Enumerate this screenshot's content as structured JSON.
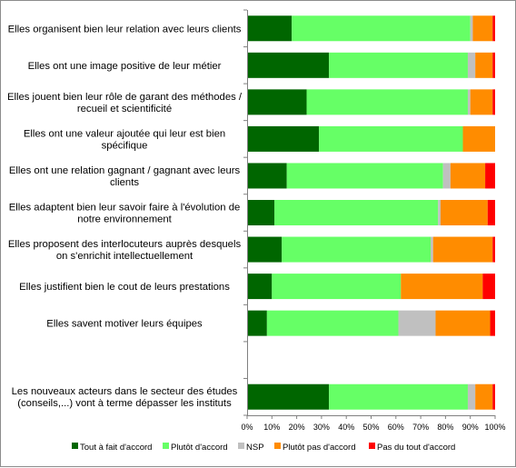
{
  "chart_data": {
    "type": "bar",
    "orientation": "horizontal",
    "stacked": true,
    "categories": [
      [
        "Elles organisent bien leur relation avec leurs clients"
      ],
      [
        "Elles ont une image positive de leur métier"
      ],
      [
        "Elles jouent bien leur rôle de garant des méthodes /",
        "recueil et scientificité"
      ],
      [
        "Elles ont une valeur ajoutée qui leur est bien",
        "spécifique"
      ],
      [
        "Elles ont une relation gagnant / gagnant avec leurs",
        "clients"
      ],
      [
        "Elles adaptent bien leur savoir faire à l'évolution de",
        "notre environnement"
      ],
      [
        "Elles proposent des interlocuteurs auprès desquels",
        "on s'enrichit intellectuellement"
      ],
      [
        "Elles justifient bien le cout de leurs prestations"
      ],
      [
        "Elles savent motiver leurs équipes"
      ],
      [],
      [
        "Les nouveaux acteurs dans le secteur des études",
        "(conseils,...) vont à terme dépasser les instituts"
      ]
    ],
    "series": [
      {
        "name": "Tout à fait d'accord",
        "color": "#006600",
        "values": [
          18,
          33,
          24,
          29,
          16,
          11,
          14,
          10,
          8,
          null,
          33
        ]
      },
      {
        "name": "Plutôt d'accord",
        "color": "#66ff66",
        "values": [
          72,
          56,
          65,
          58,
          63,
          66,
          60,
          52,
          53,
          null,
          56
        ]
      },
      {
        "name": "NSP",
        "color": "#c0c0c0",
        "values": [
          1,
          3,
          1,
          0,
          3,
          1,
          1,
          0,
          15,
          null,
          3
        ]
      },
      {
        "name": "Plutôt pas d'accord",
        "color": "#ff8c00",
        "values": [
          8,
          7,
          9,
          13,
          14,
          19,
          24,
          33,
          22,
          null,
          7
        ]
      },
      {
        "name": "Pas du tout d'accord",
        "color": "#ff0000",
        "values": [
          1,
          1,
          1,
          0,
          4,
          3,
          1,
          5,
          2,
          null,
          1
        ]
      }
    ],
    "xlim": [
      0,
      100
    ],
    "xticks": [
      "0%",
      "10%",
      "20%",
      "30%",
      "40%",
      "50%",
      "60%",
      "70%",
      "80%",
      "90%",
      "100%"
    ],
    "grid": false,
    "legend": "bottom",
    "title": "",
    "xlabel": "",
    "ylabel": ""
  }
}
